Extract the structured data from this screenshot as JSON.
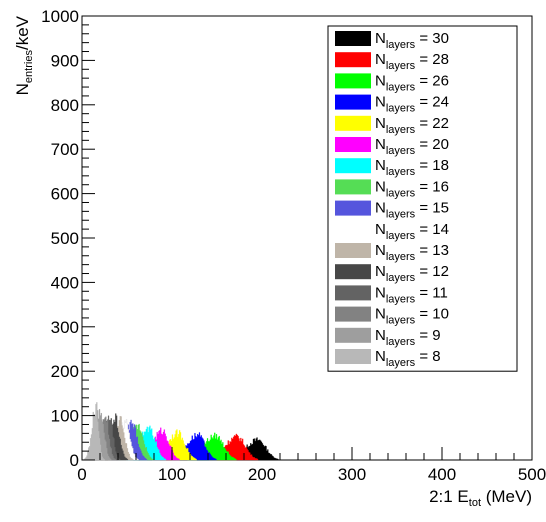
{
  "chart_data": {
    "type": "area",
    "title": "",
    "xlabel": {
      "prefix": "2:1 E",
      "sub": "tot",
      "suffix": " (MeV)"
    },
    "ylabel": {
      "prefix": "N",
      "sub": "entries",
      "suffix": "/keV"
    },
    "xlim": [
      0,
      500
    ],
    "ylim": [
      0,
      1000
    ],
    "xticks": [
      0,
      100,
      200,
      300,
      400,
      500
    ],
    "yticks": [
      0,
      100,
      200,
      300,
      400,
      500,
      600,
      700,
      800,
      900,
      1000
    ],
    "grid": false,
    "legend_position": "top-right",
    "legend_label_prefix": "N",
    "legend_label_sub": "layers",
    "series": [
      {
        "name": "30",
        "color": "#000000",
        "mean": 195,
        "width": 9,
        "peak": 45
      },
      {
        "name": "28",
        "color": "#ff0000",
        "mean": 172,
        "width": 9,
        "peak": 52
      },
      {
        "name": "26",
        "color": "#00ff00",
        "mean": 148,
        "width": 9,
        "peak": 54
      },
      {
        "name": "24",
        "color": "#0000ff",
        "mean": 128,
        "width": 8,
        "peak": 56
      },
      {
        "name": "22",
        "color": "#ffff00",
        "mean": 106,
        "width": 8,
        "peak": 60
      },
      {
        "name": "20",
        "color": "#ff00ff",
        "mean": 89,
        "width": 7,
        "peak": 66
      },
      {
        "name": "18",
        "color": "#00ffff",
        "mean": 74,
        "width": 7,
        "peak": 70
      },
      {
        "name": "16",
        "color": "#55dd55",
        "mean": 62,
        "width": 6,
        "peak": 78
      },
      {
        "name": "15",
        "color": "#5555dd",
        "mean": 55,
        "width": 6,
        "peak": 82
      },
      {
        "name": "14",
        "color": "#ffffff",
        "mean": 48,
        "width": 5,
        "peak": 86
      },
      {
        "name": "13",
        "color": "#bfb5a8",
        "mean": 42,
        "width": 5,
        "peak": 90
      },
      {
        "name": "12",
        "color": "#474747",
        "mean": 36,
        "width": 5,
        "peak": 94
      },
      {
        "name": "11",
        "color": "#636363",
        "mean": 30,
        "width": 4,
        "peak": 100
      },
      {
        "name": "10",
        "color": "#828282",
        "mean": 25,
        "width": 4,
        "peak": 106
      },
      {
        "name": "9",
        "color": "#9e9e9e",
        "mean": 20,
        "width": 4,
        "peak": 112
      },
      {
        "name": "8",
        "color": "#b8b8b8",
        "mean": 15,
        "width": 3,
        "peak": 120
      }
    ]
  }
}
